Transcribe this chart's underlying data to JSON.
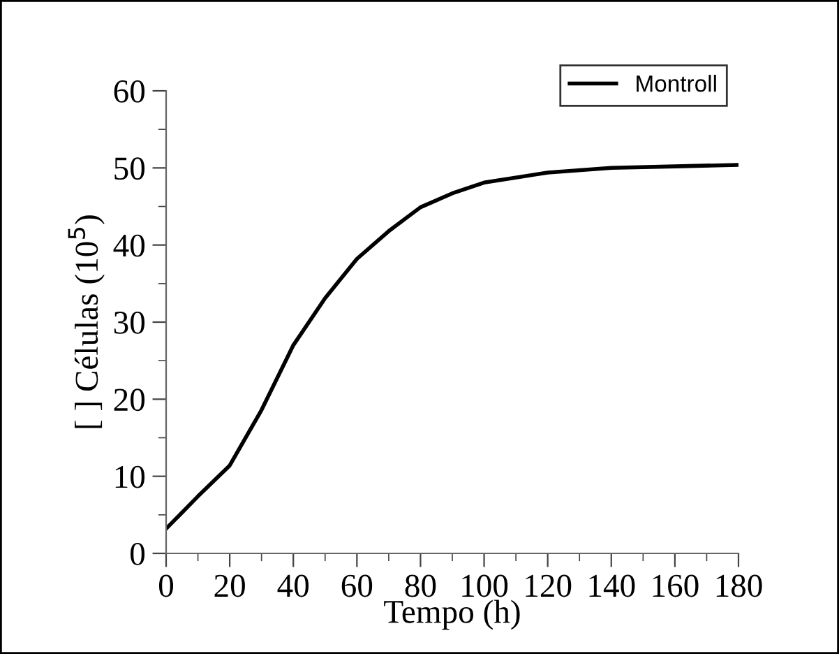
{
  "chart_data": {
    "type": "line",
    "xlabel": "Tempo (h)",
    "ylabel": "[ ] Células (10$^{5}$)",
    "x": [
      0,
      10,
      20,
      30,
      40,
      50,
      60,
      70,
      80,
      90,
      100,
      120,
      140,
      160,
      180
    ],
    "series": [
      {
        "name": "Montroll",
        "color": "#000000",
        "values": [
          3.2,
          7.4,
          11.4,
          18.6,
          27.0,
          33.1,
          38.2,
          41.8,
          44.9,
          46.7,
          48.1,
          49.4,
          50.0,
          50.2,
          50.4
        ]
      }
    ],
    "xlim": [
      0,
      180
    ],
    "xticks": [
      0,
      20,
      40,
      60,
      80,
      100,
      120,
      140,
      160,
      180
    ],
    "ylim": [
      0,
      60
    ],
    "yticks": [
      0,
      10,
      20,
      30,
      40,
      50,
      60
    ],
    "legend": "top right",
    "grid": false,
    "marker": "none",
    "line_style": "solid"
  }
}
